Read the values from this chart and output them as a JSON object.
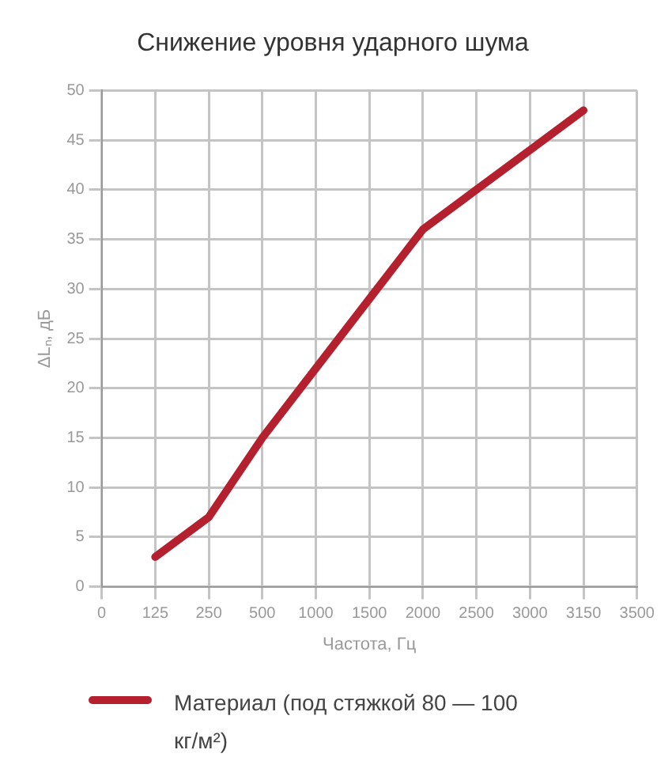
{
  "chart_data": {
    "type": "line",
    "title": "Снижение уровня ударного шума",
    "xlabel": "Частота, Гц",
    "ylabel": "ΔLₙ, дБ",
    "categories": [
      "0",
      "125",
      "250",
      "500",
      "1000",
      "1500",
      "2000",
      "2500",
      "3000",
      "3150",
      "3500"
    ],
    "series": [
      {
        "name": "Материал (под стяжкой 80 — 100 кг/м²)",
        "color": "#b5202e",
        "values": [
          null,
          3,
          7,
          15,
          22,
          29,
          36,
          40,
          44,
          48,
          null
        ]
      }
    ],
    "ylim": [
      0,
      50
    ],
    "yticks": [
      0,
      5,
      10,
      15,
      20,
      25,
      30,
      35,
      40,
      45,
      50
    ],
    "grid": true,
    "legend": "bottom",
    "marker": "none",
    "line_style": "solid"
  }
}
